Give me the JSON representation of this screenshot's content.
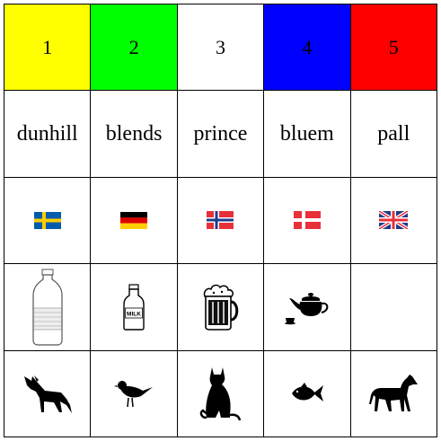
{
  "houses": [
    {
      "number": "1",
      "color_name": "yellow",
      "color": "#ffff00",
      "cigar": "dunhill",
      "nationality": "swede",
      "flag_icon": "sweden-flag-icon",
      "drink": "water",
      "drink_icon": "water-bottle-icon",
      "pet": "dog",
      "pet_icon": "dog-icon"
    },
    {
      "number": "2",
      "color_name": "green",
      "color": "#00ff00",
      "cigar": "blends",
      "nationality": "german",
      "flag_icon": "germany-flag-icon",
      "drink": "milk",
      "drink_icon": "milk-bottle-icon",
      "pet": "bird",
      "pet_icon": "bird-icon"
    },
    {
      "number": "3",
      "color_name": "white",
      "color": "#ffffff",
      "cigar": "prince",
      "nationality": "norwegian",
      "flag_icon": "norway-flag-icon",
      "drink": "beer",
      "drink_icon": "beer-mug-icon",
      "pet": "cat",
      "pet_icon": "cat-icon"
    },
    {
      "number": "4",
      "color_name": "blue",
      "color": "#0000ff",
      "cigar": "bluem",
      "nationality": "dane",
      "flag_icon": "denmark-flag-icon",
      "drink": "tea",
      "drink_icon": "teapot-icon",
      "pet": "fish",
      "pet_icon": "fish-icon"
    },
    {
      "number": "5",
      "color_name": "red",
      "color": "#ff0000",
      "cigar": "pall",
      "nationality": "brit",
      "flag_icon": "uk-flag-icon",
      "drink": "",
      "drink_icon": "",
      "pet": "horse",
      "pet_icon": "horse-icon"
    }
  ],
  "milk_label": "MILK"
}
